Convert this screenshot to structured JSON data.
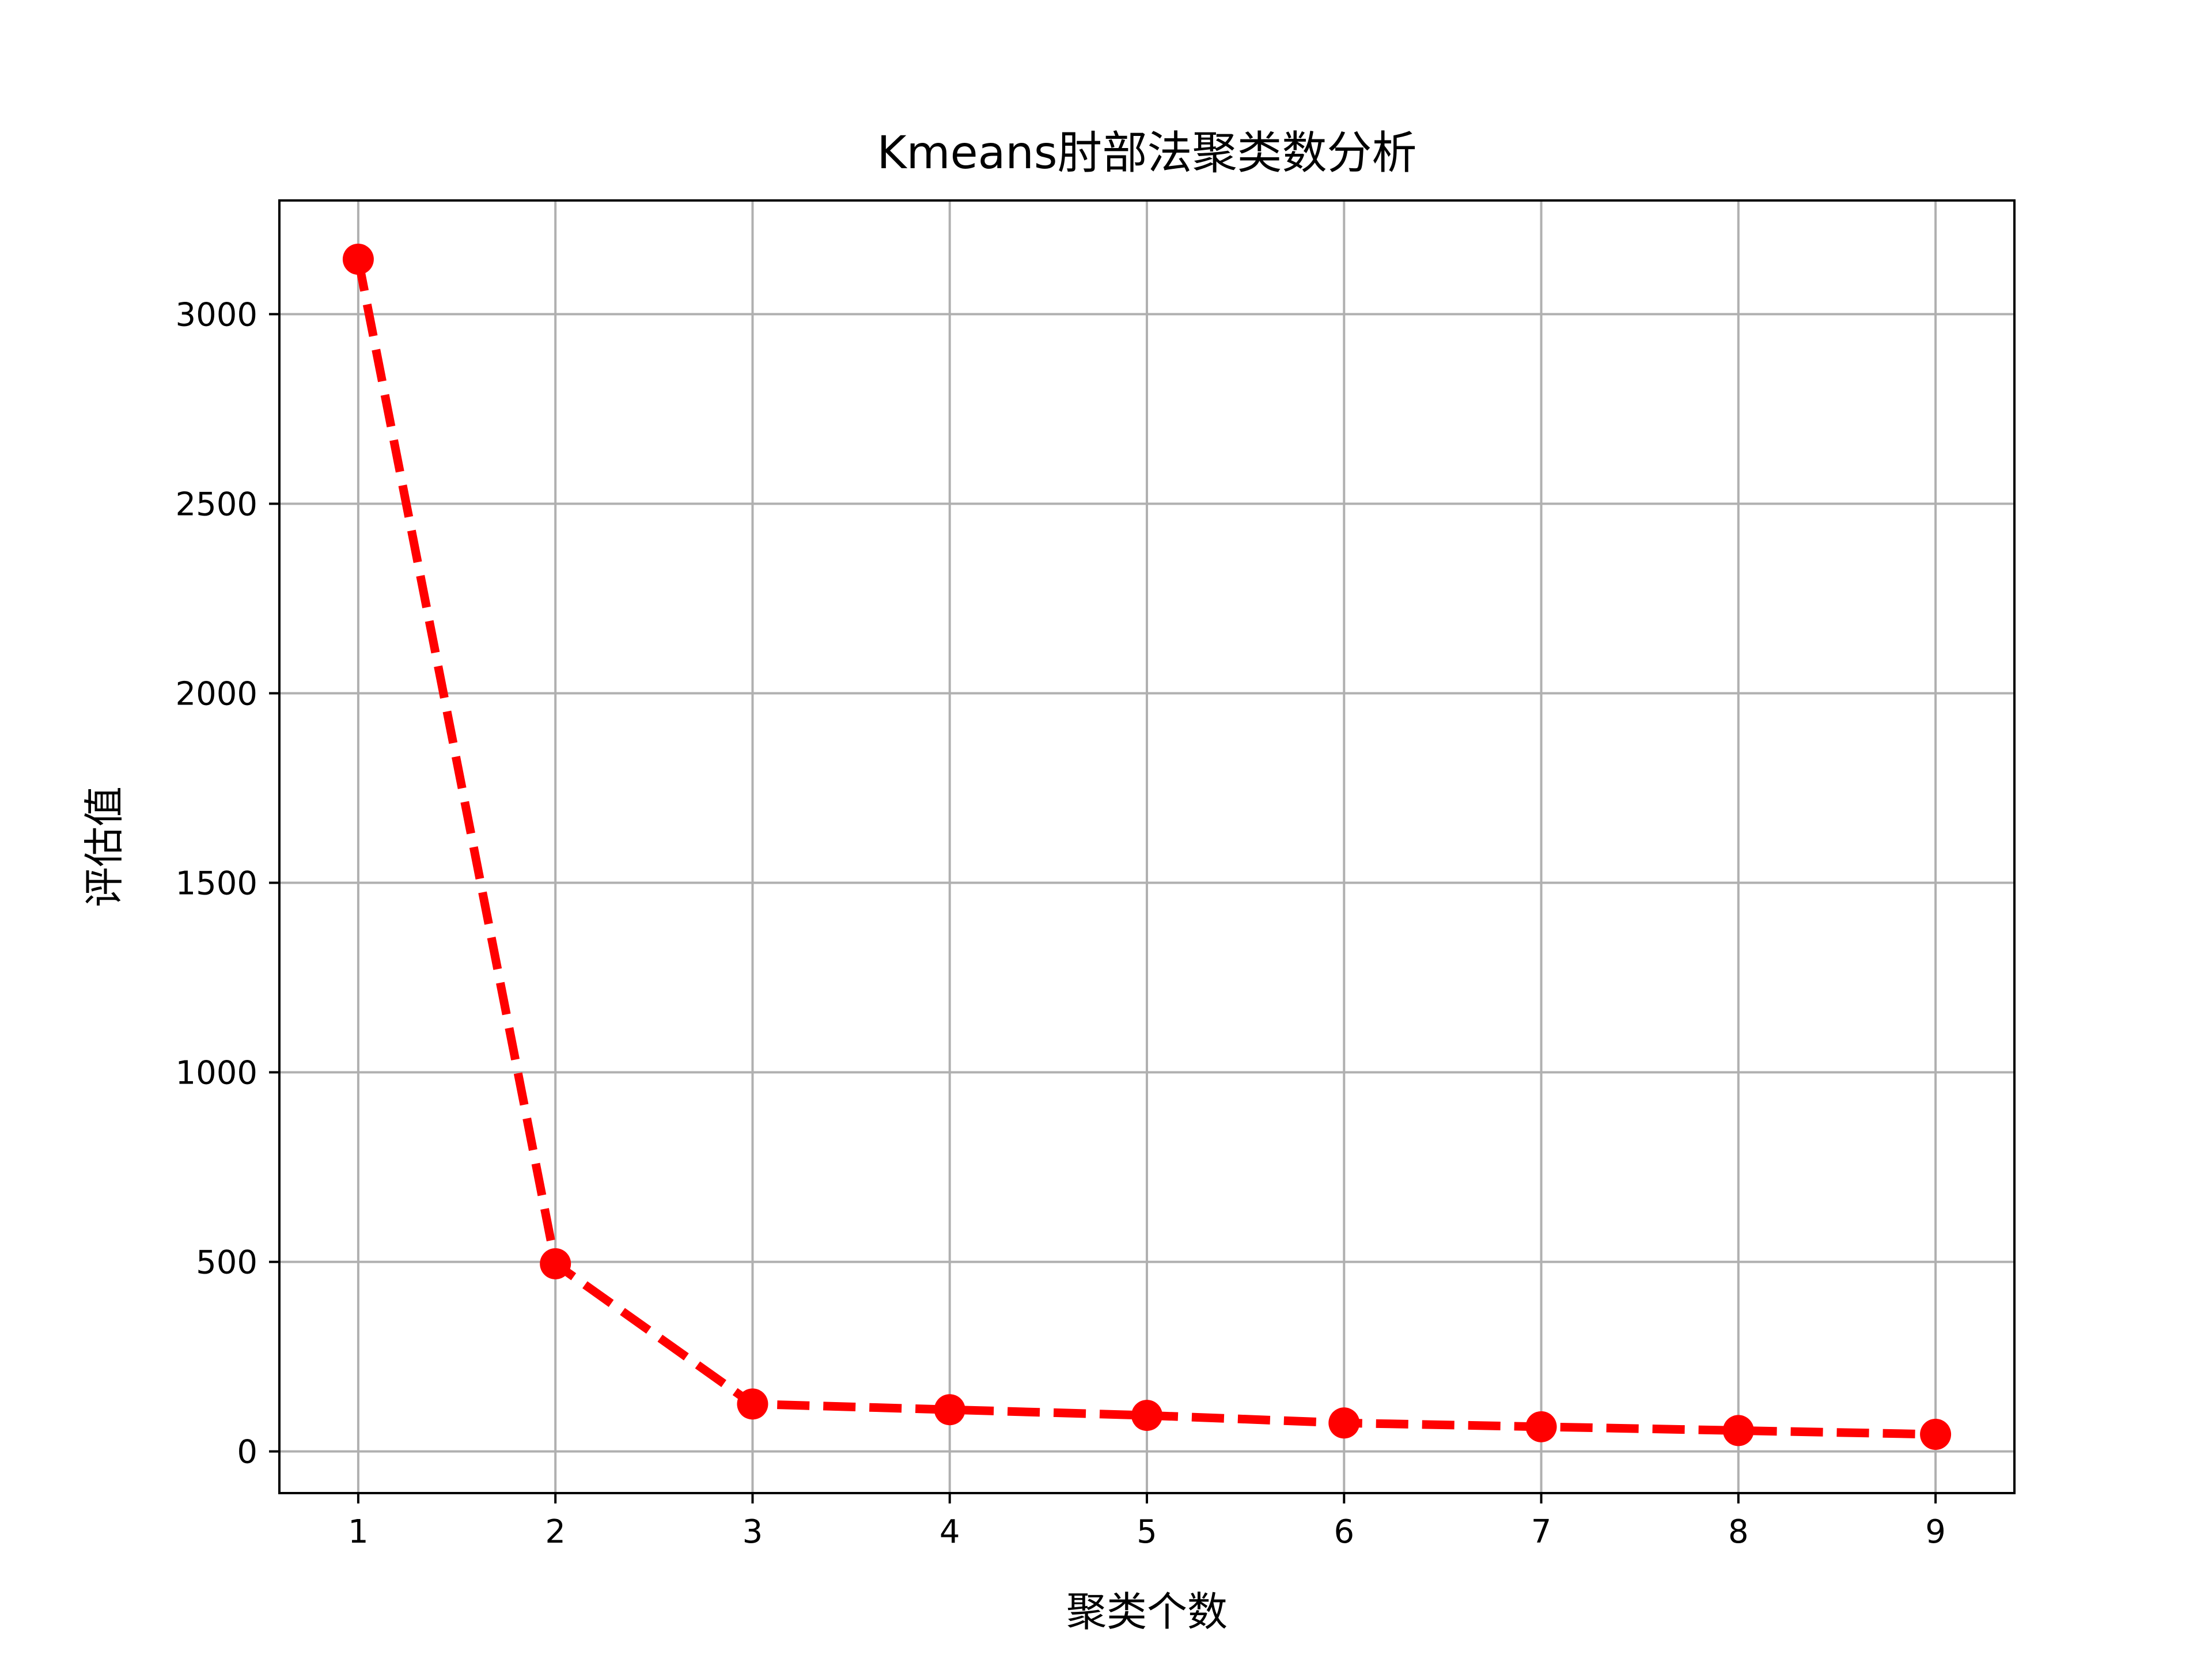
{
  "chart_data": {
    "type": "line",
    "title": "Kmeans肘部法聚类数分析",
    "xlabel": "聚类个数",
    "ylabel": "评估值",
    "x": [
      1,
      2,
      3,
      4,
      5,
      6,
      7,
      8,
      9
    ],
    "series": [
      {
        "values": [
          3145,
          495,
          125,
          110,
          95,
          75,
          65,
          55,
          45
        ],
        "color": "#ff0000",
        "line_style": "dashed",
        "marker": "circle"
      }
    ],
    "xticks": [
      1,
      2,
      3,
      4,
      5,
      6,
      7,
      8,
      9
    ],
    "yticks": [
      0,
      500,
      1000,
      1500,
      2000,
      2500,
      3000
    ],
    "xlim": [
      0.6,
      9.4
    ],
    "ylim": [
      -110,
      3300
    ],
    "grid": true,
    "grid_color": "#b0b0b0"
  }
}
